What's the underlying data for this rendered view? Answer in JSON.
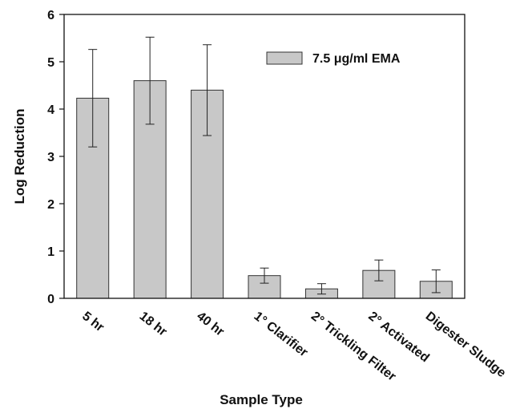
{
  "chart_data": {
    "type": "bar",
    "categories": [
      "5 hr",
      "18 hr",
      "40 hr",
      "1° Clarifier",
      "2° Trickling Filter",
      "2° Activated",
      "Digester Sludge"
    ],
    "series": [
      {
        "name": "7.5 μg/ml EMA",
        "values": [
          4.23,
          4.6,
          4.4,
          0.48,
          0.2,
          0.59,
          0.36
        ],
        "errors": [
          1.03,
          0.92,
          0.96,
          0.16,
          0.11,
          0.22,
          0.24
        ]
      }
    ],
    "xlabel": "Sample Type",
    "ylabel": "Log Reduction",
    "ylim": [
      0,
      6
    ],
    "yticks": [
      0,
      1,
      2,
      3,
      4,
      5,
      6
    ],
    "legend_position": "top-right",
    "grid": false,
    "bar_color": "#c8c8c8",
    "edge_color": "#333333"
  }
}
